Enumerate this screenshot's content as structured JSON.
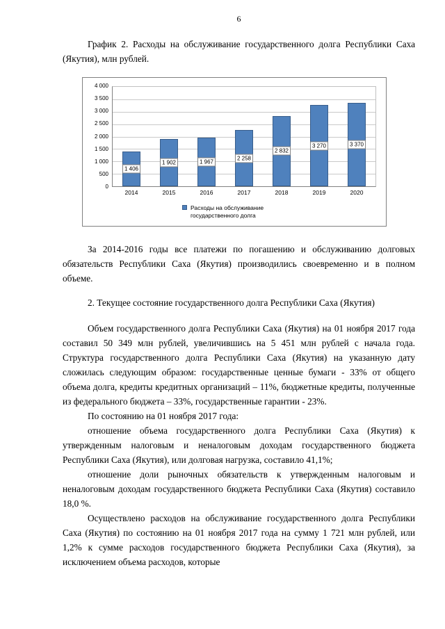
{
  "page": {
    "number": "6"
  },
  "document": {
    "chart_caption": "График 2. Расходы на обслуживание государственного долга Республики Саха (Якутия), млн рублей.",
    "para_payments": "За 2014-2016 годы все платежи по погашению и обслуживанию долговых обязательств Республики Саха (Якутия) производились своевременно и в полном объеме.",
    "section_heading": "2. Текущее состояние государственного долга Республики Саха (Якутия)",
    "para_volume": "Объем государственного долга Республики Саха (Якутия) на 01 ноября 2017 года составил 50 349 млн рублей, увеличившись на 5 451 млн рублей с начала года. Структура государственного долга Республики Саха (Якутия) на указанную дату сложилась следующим образом: государственные ценные бумаги - 33% от общего объема долга, кредиты кредитных организаций – 11%, бюджетные кредиты, полученные из федерального бюджета – 33%, государственные гарантии - 23%.",
    "para_as_of": "По состоянию на 01 ноября 2017 года:",
    "para_ratio_debt": "отношение объема государственного долга Республики Саха (Якутия) к утвержденным налоговым и неналоговым доходам государственного бюджета Республики Саха (Якутия), или долговая нагрузка, составило 41,1%;",
    "para_ratio_market": "отношение доли рыночных обязательств к утвержденным налоговым и неналоговым доходам государственного бюджета Республики Саха (Якутия) составило 18,0 %.",
    "para_expenses": "Осуществлено расходов на обслуживание государственного долга Республики Саха (Якутия) по состоянию на 01 ноября 2017 года на сумму 1 721 млн рублей, или 1,2% к сумме расходов государственного бюджета Республики Саха (Якутия), за исключением объема расходов, которые"
  },
  "chart_data": {
    "type": "bar",
    "title": "Расходы на обслуживание государственного долга Республики Саха (Якутия), млн рублей",
    "categories": [
      "2014",
      "2015",
      "2016",
      "2017",
      "2018",
      "2019",
      "2020"
    ],
    "values": [
      1406,
      1902,
      1967,
      2258,
      2832,
      3270,
      3370
    ],
    "value_labels": [
      "1 406",
      "1 902",
      "1 967",
      "2 258",
      "2 832",
      "3 270",
      "3 370"
    ],
    "series": [
      {
        "name": "Расходы на обслуживание государственного долга",
        "values": [
          1406,
          1902,
          1967,
          2258,
          2832,
          3270,
          3370
        ]
      }
    ],
    "legend": [
      "Расходы на обслуживание государственного долга"
    ],
    "legend_position": "bottom",
    "xlabel": "",
    "ylabel": "",
    "ylim": [
      0,
      4000
    ],
    "ytick_step": 500,
    "ytick_labels": [
      "4 000",
      "3 500",
      "3 000",
      "2 500",
      "2 000",
      "1 500",
      "1 000",
      "500",
      "0"
    ],
    "grid": true,
    "bar_color": "#4f81bd"
  }
}
